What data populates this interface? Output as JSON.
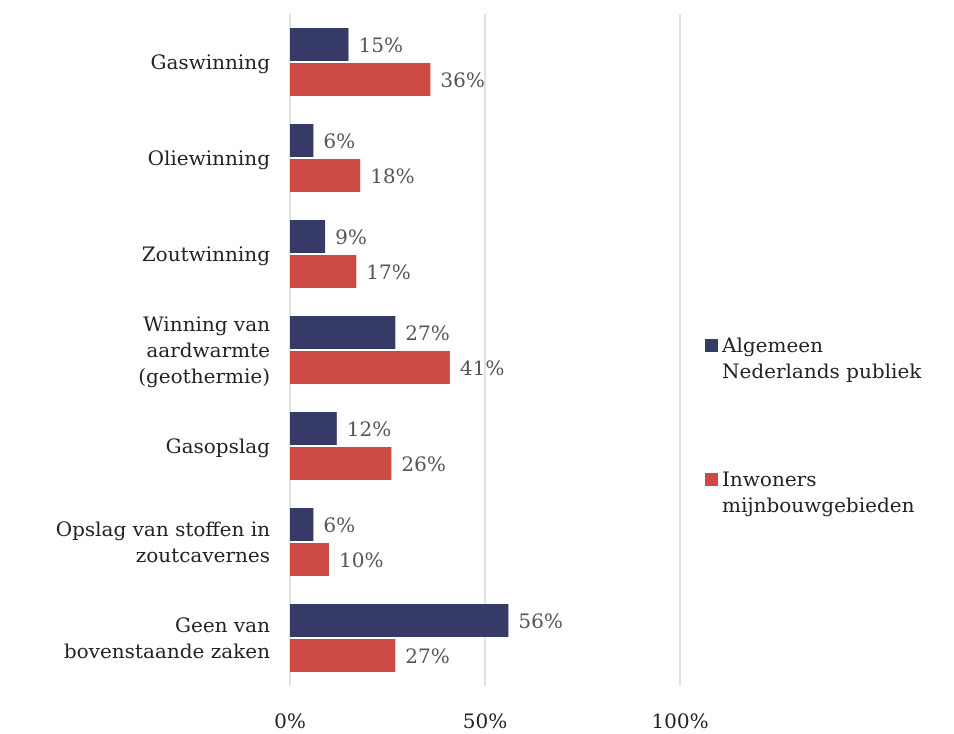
{
  "chart_data": {
    "type": "hbar",
    "categories": [
      "Gaswinning",
      "Oliewinning",
      "Zoutwinning",
      "Winning van\naardwarmte\n(geothermie)",
      "Gasopslag",
      "Opslag van stoffen in\nzoutcavernes",
      "Geen van\nbovenstaande zaken"
    ],
    "series": [
      {
        "name": "Algemeen\nNederlands publiek",
        "color": "#363a66",
        "values": [
          15,
          6,
          9,
          27,
          12,
          6,
          56
        ],
        "value_labels": [
          "15%",
          "6%",
          "9%",
          "27%",
          "12%",
          "6%",
          "56%"
        ]
      },
      {
        "name": "Inwoners\nmijnbouwgebieden",
        "color": "#cc4b44",
        "values": [
          36,
          18,
          17,
          41,
          26,
          10,
          27
        ],
        "value_labels": [
          "36%",
          "18%",
          "17%",
          "41%",
          "26%",
          "10%",
          "27%"
        ]
      }
    ],
    "xlim": [
      0,
      100
    ],
    "xticks": [
      {
        "value": 0,
        "label": "0%"
      },
      {
        "value": 50,
        "label": "50%"
      },
      {
        "value": 100,
        "label": "100%"
      }
    ],
    "grid": true,
    "legend": "right"
  }
}
